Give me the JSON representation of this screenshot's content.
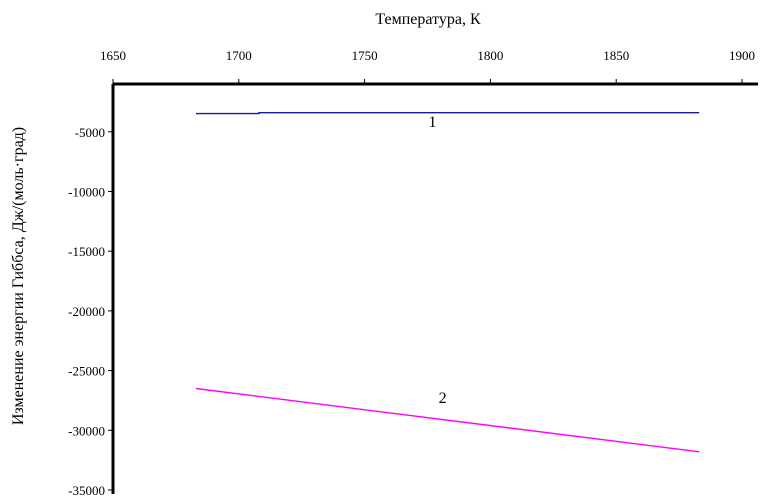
{
  "chart_data": {
    "type": "line",
    "xlabel": "Температура, К",
    "ylabel": "Изменение энергии Гиббса, Дж/(моль·град)",
    "xlim": [
      1650,
      1900
    ],
    "ylim": [
      -35000,
      -1000
    ],
    "x_ticks": [
      "1650",
      "1700",
      "1750",
      "1800",
      "1850",
      "1900"
    ],
    "y_ticks": [
      "-5000",
      "-10000",
      "-15000",
      "-20000",
      "-25000",
      "-30000",
      "-35000"
    ],
    "x_axis_position": "top",
    "grid": false,
    "colors": {
      "series_1": "#1a1aa0",
      "series_2": "#ff00ff",
      "axis": "#000000"
    },
    "series": [
      {
        "label": "1",
        "x": [
          1683,
          1708,
          1708,
          1883
        ],
        "y": [
          -3480,
          -3480,
          -3400,
          -3400
        ]
      },
      {
        "label": "2",
        "x": [
          1683,
          1883
        ],
        "y": [
          -26500,
          -31800
        ]
      }
    ]
  }
}
